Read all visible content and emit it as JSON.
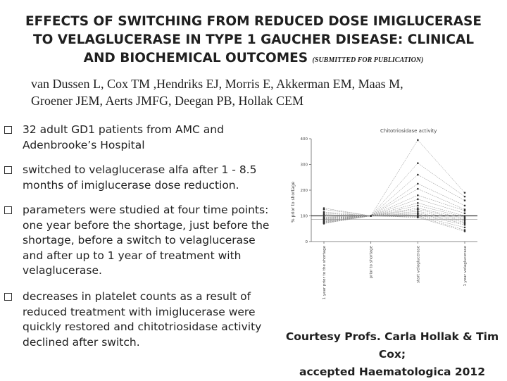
{
  "title": {
    "line1": "EFFECTS OF SWITCHING FROM REDUCED DOSE IMIGLUCERASE",
    "line2": "TO VELAGLUCERASE IN TYPE 1 GAUCHER DISEASE: CLINICAL",
    "line3": "AND BIOCHEMICAL OUTCOMES",
    "note": "(SUBMITTED FOR PUBLICATION)"
  },
  "authors": {
    "line1": "van Dussen L, Cox TM ,Hendriks EJ, Morris E, Akkerman EM, Maas M,",
    "line2": "Groener JEM, Aerts JMFG, Deegan PB, Hollak CEM"
  },
  "bullets": [
    {
      "lines": [
        "32 adult GD1 patients from AMC and",
        "Adenbrooke’s Hospital"
      ]
    },
    {
      "lines": [
        "switched to velaglucerase alfa after 1 - 8.5",
        "months of imiglucerase dose reduction."
      ]
    },
    {
      "lines": [
        "parameters were studied at four time points:",
        "one year before the shortage, just before the",
        "shortage, before a switch to velaglucerase",
        "and after up to 1 year of treatment with",
        "velaglucerase."
      ]
    },
    {
      "lines": [
        "decreases in platelet counts as a result of",
        "reduced treatment with imiglucerase were",
        "quickly restored and chitotriosidase activity",
        "declined after switch."
      ]
    }
  ],
  "courtesy": {
    "line1": "Courtesy Profs. Carla Hollak & Tim Cox;",
    "line2": "accepted Haematologica 2012"
  },
  "chart_data": {
    "type": "line",
    "title": "Chitotriosidase activity",
    "ylabel": "% prior to shortage",
    "categories": [
      "1 year prior to the shortage",
      "prior to shortage",
      "start velaglucerase",
      "1 year velaglucerase"
    ],
    "ylim": [
      0,
      400
    ],
    "yticks": [
      0,
      100,
      200,
      300,
      400
    ],
    "reference_line": 100,
    "series": [
      {
        "values": [
          130,
          100,
          395,
          190
        ]
      },
      {
        "values": [
          125,
          100,
          305,
          175
        ]
      },
      {
        "values": [
          115,
          100,
          260,
          160
        ]
      },
      {
        "values": [
          110,
          100,
          225,
          140
        ]
      },
      {
        "values": [
          105,
          100,
          205,
          125
        ]
      },
      {
        "values": [
          100,
          100,
          180,
          120
        ]
      },
      {
        "values": [
          95,
          100,
          165,
          110
        ]
      },
      {
        "values": [
          92,
          100,
          150,
          100
        ]
      },
      {
        "values": [
          90,
          100,
          140,
          95
        ]
      },
      {
        "values": [
          88,
          100,
          130,
          90
        ]
      },
      {
        "values": [
          85,
          100,
          125,
          85
        ]
      },
      {
        "values": [
          82,
          100,
          118,
          80
        ]
      },
      {
        "values": [
          80,
          100,
          112,
          75
        ]
      },
      {
        "values": [
          78,
          100,
          108,
          70
        ]
      },
      {
        "values": [
          76,
          100,
          104,
          65
        ]
      },
      {
        "values": [
          74,
          100,
          100,
          55
        ]
      },
      {
        "values": [
          72,
          100,
          97,
          45
        ]
      },
      {
        "values": [
          70,
          100,
          94,
          40
        ]
      }
    ]
  }
}
